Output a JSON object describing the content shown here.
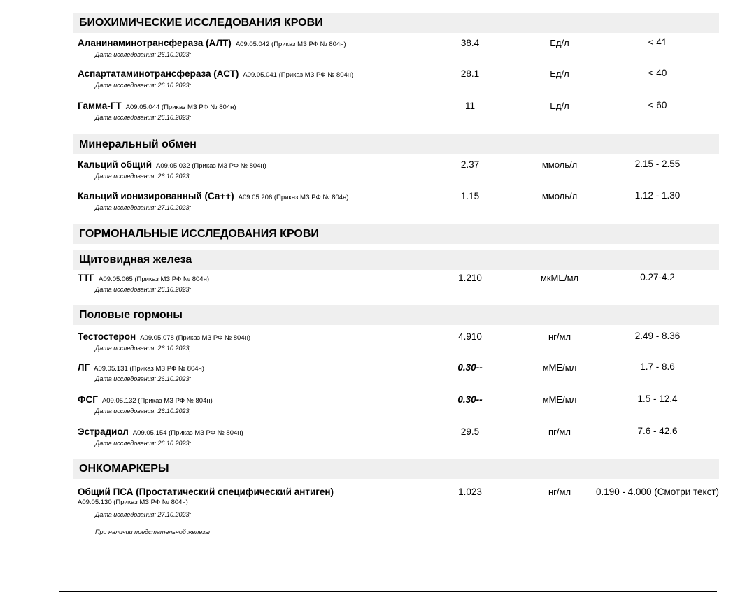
{
  "sections": [
    {
      "title": "БИОХИМИЧЕСКИЕ ИССЛЕДОВАНИЯ КРОВИ"
    },
    {
      "title": "Минеральный обмен"
    },
    {
      "title": "ГОРМОНАЛЬНЫЕ ИССЛЕДОВАНИЯ КРОВИ"
    },
    {
      "title": "Щитовидная железа"
    },
    {
      "title": "Половые гормоны"
    },
    {
      "title": "ОНКОМАРКЕРЫ"
    }
  ],
  "items": [
    {
      "name": "Аланинаминотрансфераза (АЛТ)",
      "code": "A09.05.042 (Приказ МЗ РФ № 804н)",
      "date": "Дата исследования: 26.10.2023;",
      "value": "38.4",
      "unit": "Ед/л",
      "ref": "< 41",
      "flag": false
    },
    {
      "name": "Аспартатаминотрансфераза (АСТ)",
      "code": "A09.05.041 (Приказ МЗ РФ № 804н)",
      "date": "Дата исследования: 26.10.2023;",
      "value": "28.1",
      "unit": "Ед/л",
      "ref": "< 40",
      "flag": false
    },
    {
      "name": "Гамма-ГТ",
      "code": "A09.05.044 (Приказ МЗ РФ № 804н)",
      "date": "Дата исследования: 26.10.2023;",
      "value": "11",
      "unit": "Ед/л",
      "ref": "< 60",
      "flag": false
    },
    {
      "name": "Кальций общий",
      "code": "A09.05.032 (Приказ МЗ РФ № 804н)",
      "date": "Дата исследования: 26.10.2023;",
      "value": "2.37",
      "unit": "ммоль/л",
      "ref": "2.15 - 2.55",
      "flag": false
    },
    {
      "name": "Кальций ионизированный (Са++)",
      "code": "A09.05.206 (Приказ МЗ РФ № 804н)",
      "date": "Дата исследования: 27.10.2023;",
      "value": "1.15",
      "unit": "ммоль/л",
      "ref": "1.12 - 1.30",
      "flag": false
    },
    {
      "name": "ТТГ",
      "code": "A09.05.065 (Приказ МЗ РФ № 804н)",
      "date": "Дата исследования: 26.10.2023;",
      "value": "1.210",
      "unit": "мкМЕ/мл",
      "ref": "0.27-4.2",
      "flag": false
    },
    {
      "name": "Тестостерон",
      "code": "A09.05.078 (Приказ МЗ РФ № 804н)",
      "date": "Дата исследования: 26.10.2023;",
      "value": "4.910",
      "unit": "нг/мл",
      "ref": "2.49 - 8.36",
      "flag": false
    },
    {
      "name": "ЛГ",
      "code": "A09.05.131 (Приказ МЗ РФ № 804н)",
      "date": "Дата исследования: 26.10.2023;",
      "value": "0.30--",
      "unit": "мМЕ/мл",
      "ref": "1.7 - 8.6",
      "flag": true
    },
    {
      "name": "ФСГ",
      "code": "A09.05.132 (Приказ МЗ РФ № 804н)",
      "date": "Дата исследования: 26.10.2023;",
      "value": "0.30--",
      "unit": "мМЕ/мл",
      "ref": "1.5 - 12.4",
      "flag": true
    },
    {
      "name": "Эстрадиол",
      "code": "A09.05.154 (Приказ МЗ РФ № 804н)",
      "date": "Дата исследования: 26.10.2023;",
      "value": "29.5",
      "unit": "пг/мл",
      "ref": "7.6 - 42.6",
      "flag": false
    },
    {
      "name": "Общий ПСА (Простатический специфический антиген)",
      "code": "A09.05.130 (Приказ МЗ РФ № 804н)",
      "date": "Дата исследования: 27.10.2023;",
      "note": "При наличии предстательной железы",
      "value": "1.023",
      "unit": "нг/мл",
      "ref": "0.190 - 4.000 (Смотри текст)",
      "flag": false
    }
  ]
}
